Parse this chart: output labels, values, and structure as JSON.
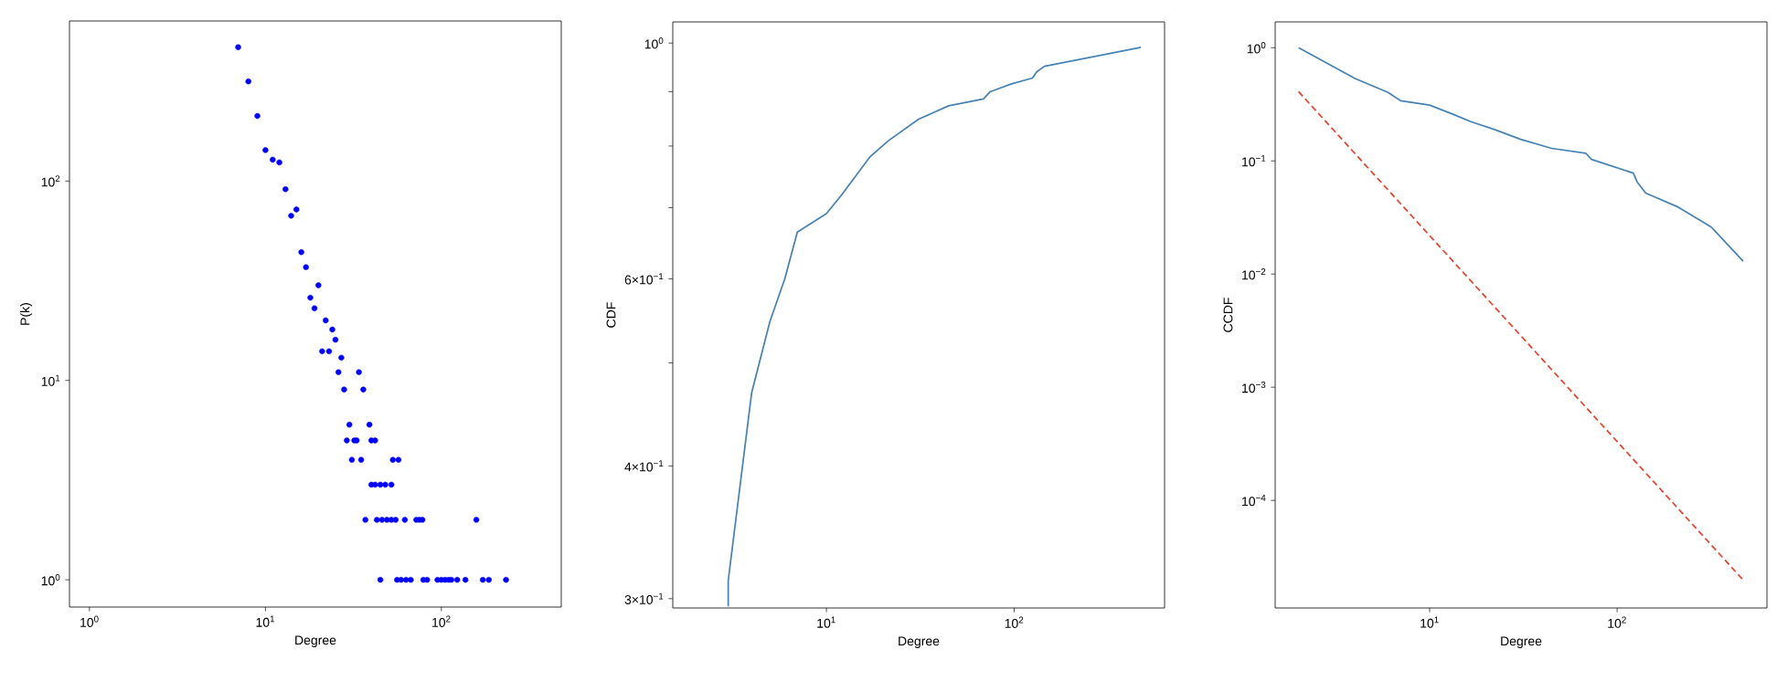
{
  "chart_data": [
    {
      "type": "scatter",
      "xlabel": "Degree",
      "ylabel": "P(k)",
      "log": "xy",
      "marker": "circle",
      "xlim": [
        0.77,
        480
      ],
      "ylim": [
        0.73,
        635
      ],
      "xticks": [
        {
          "value": 1,
          "label": "10$^{0}$"
        },
        {
          "value": 10,
          "label": "10$^{1}$"
        },
        {
          "value": 100,
          "label": "10$^{2}$"
        }
      ],
      "yticks": [
        {
          "value": 1,
          "label": "10$^{0}$"
        },
        {
          "value": 10,
          "label": "10$^{1}$"
        },
        {
          "value": 100,
          "label": "10$^{2}$"
        }
      ],
      "series": [
        {
          "color": "#0000ff",
          "x": [
            7,
            8,
            9,
            10,
            11,
            12,
            13,
            14,
            15,
            16,
            17,
            18,
            19,
            20,
            21,
            22,
            23,
            24,
            25,
            26,
            27,
            28,
            29,
            30,
            31,
            32,
            33,
            34,
            35,
            36,
            37,
            39,
            40,
            42,
            40,
            42,
            45,
            48,
            52,
            53,
            57,
            43,
            46,
            49,
            52,
            55,
            62,
            72,
            75,
            78,
            158,
            45,
            56,
            59,
            63,
            67,
            79,
            83,
            95,
            100,
            105,
            110,
            114,
            123,
            137,
            172,
            186,
            233
          ],
          "values": [
            469,
            316,
            212,
            143,
            128,
            124,
            91,
            67,
            72,
            44,
            37,
            26,
            23,
            30,
            14,
            20,
            14,
            18,
            16,
            11,
            13,
            9,
            5,
            6,
            4,
            5,
            5,
            11,
            4,
            9,
            2,
            6,
            5,
            5,
            3,
            3,
            3,
            3,
            3,
            4,
            4,
            2,
            2,
            2,
            2,
            2,
            2,
            2,
            2,
            2,
            2,
            1,
            1,
            1,
            1,
            1,
            1,
            1,
            1,
            1,
            1,
            1,
            1,
            1,
            1,
            1,
            1,
            1
          ]
        }
      ]
    },
    {
      "type": "line",
      "xlabel": "Degree",
      "ylabel": "CDF",
      "log": "xy",
      "xlim": [
        1.52,
        632
      ],
      "ylim": [
        0.294,
        1.047
      ],
      "xticks": [
        {
          "value": 10,
          "label": "10$^{1}$"
        },
        {
          "value": 100,
          "label": "10$^{2}$"
        }
      ],
      "yticks": [
        {
          "value": 0.3,
          "label": "3×10$^{−1}$"
        },
        {
          "value": 0.4,
          "label": "4×10$^{−1}$"
        },
        {
          "value": 0.5,
          "label": null
        },
        {
          "value": 0.6,
          "label": "6×10$^{−1}$"
        },
        {
          "value": 0.7,
          "label": null
        },
        {
          "value": 0.8,
          "label": null
        },
        {
          "value": 0.9,
          "label": null
        },
        {
          "value": 1,
          "label": "10$^{0}$"
        }
      ],
      "series": [
        {
          "color": "#4682b4",
          "line_style": "solid",
          "x": [
            3,
            3,
            4,
            5,
            6,
            7,
            10,
            12,
            17,
            21.3,
            31,
            44.8,
            68.6,
            74.5,
            96,
            125,
            132,
            145,
            473
          ],
          "values": [
            0.295,
            0.312,
            0.469,
            0.547,
            0.6,
            0.664,
            0.691,
            0.719,
            0.781,
            0.809,
            0.848,
            0.873,
            0.886,
            0.9,
            0.915,
            0.927,
            0.94,
            0.951,
            0.991
          ]
        }
      ]
    },
    {
      "type": "line",
      "xlabel": "Degree",
      "ylabel": "CCDF",
      "log": "xy",
      "xlim": [
        1.5,
        630
      ],
      "ylim": [
        1.12e-05,
        1.69
      ],
      "xticks": [
        {
          "value": 10,
          "label": "10$^{1}$"
        },
        {
          "value": 100,
          "label": "10$^{2}$"
        }
      ],
      "yticks": [
        {
          "value": 0.0001,
          "label": "10$^{−4}$"
        },
        {
          "value": 0.001,
          "label": "10$^{−3}$"
        },
        {
          "value": 0.01,
          "label": "10$^{−2}$"
        },
        {
          "value": 0.1,
          "label": "10$^{−1}$"
        },
        {
          "value": 1,
          "label": "10$^{0}$"
        }
      ],
      "series": [
        {
          "color": "#4682b4",
          "line_style": "solid",
          "x": [
            2,
            4,
            6,
            7,
            10,
            13.4,
            16.7,
            22,
            30.6,
            44.7,
            68,
            73,
            122,
            128,
            142,
            212,
            318,
            470
          ],
          "values": [
            1,
            0.535,
            0.402,
            0.34,
            0.311,
            0.257,
            0.221,
            0.19,
            0.155,
            0.129,
            0.117,
            0.103,
            0.078,
            0.065,
            0.052,
            0.039,
            0.026,
            0.013
          ]
        },
        {
          "color": "#e8412c",
          "line_style": "dashed",
          "x": [
            2,
            470
          ],
          "values": [
            0.409,
            1.98e-05
          ]
        }
      ]
    }
  ]
}
